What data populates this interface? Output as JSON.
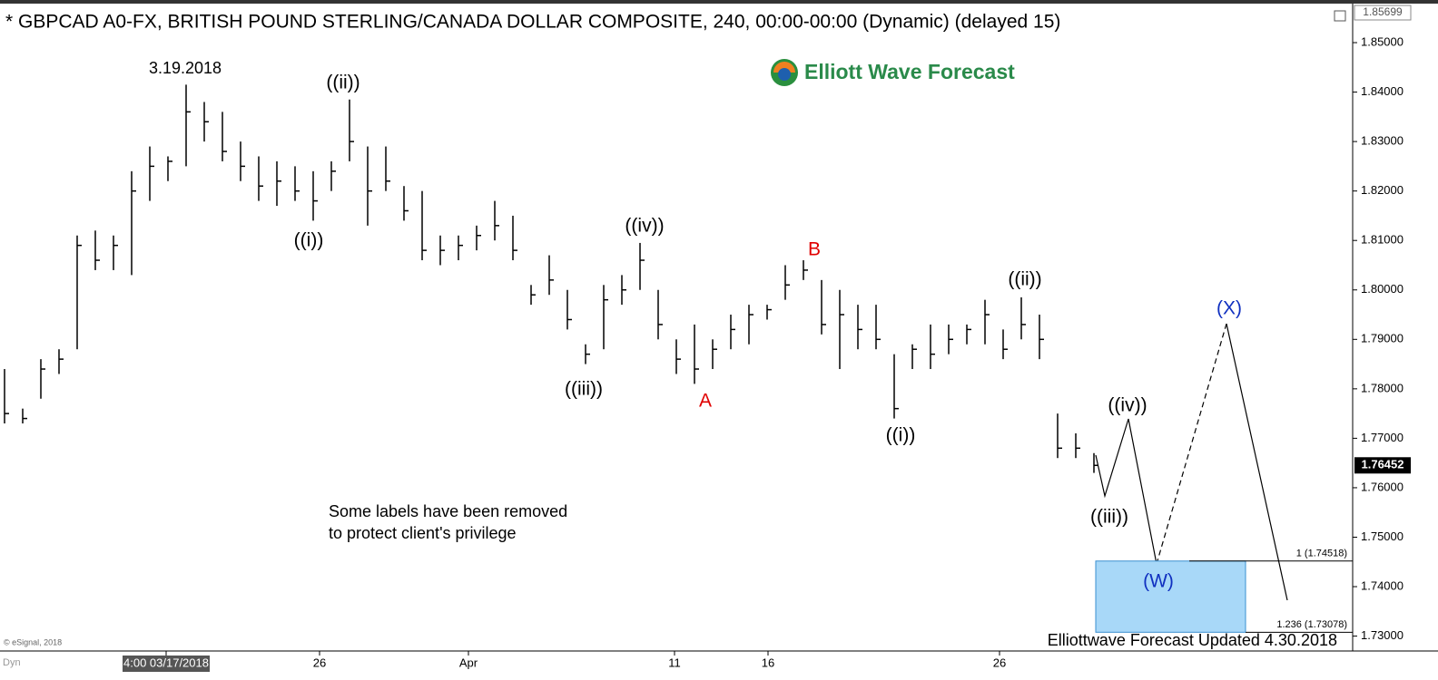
{
  "chart_data": {
    "type": "ohlc",
    "title": "* GBPCAD A0-FX, BRITISH POUND STERLING/CANADA DOLLAR COMPOSITE, 240, 00:00-00:00 (Dynamic) (delayed 15)",
    "logo": "Elliott Wave Forecast",
    "note": [
      "Some labels have been removed",
      "to protect client's privilege"
    ],
    "footer": "Elliottwave Forecast Updated 4.30.2018",
    "copyright": "© eSignal, 2018",
    "mode": "Dyn",
    "color": "#000000",
    "high": [
      1.784,
      1.776,
      1.786,
      1.788,
      1.811,
      1.812,
      1.811,
      1.824,
      1.829,
      1.827,
      1.8415,
      1.838,
      1.836,
      1.83,
      1.827,
      1.826,
      1.825,
      1.824,
      1.826,
      1.8385,
      1.829,
      1.829,
      1.821,
      1.82,
      1.811,
      1.811,
      1.813,
      1.818,
      1.815,
      1.801,
      1.807,
      1.8,
      1.789,
      1.801,
      1.803,
      1.8095,
      1.8,
      1.79,
      1.793,
      1.79,
      1.795,
      1.797,
      1.797,
      1.805,
      1.806,
      1.802,
      1.8,
      1.797,
      1.797,
      1.787,
      1.789,
      1.793,
      1.793,
      1.793,
      1.798,
      1.792,
      1.7985,
      1.795,
      1.775,
      1.771,
      1.767
    ],
    "low": [
      1.773,
      1.773,
      1.778,
      1.783,
      1.788,
      1.804,
      1.804,
      1.803,
      1.818,
      1.822,
      1.825,
      1.83,
      1.826,
      1.822,
      1.818,
      1.817,
      1.818,
      1.814,
      1.82,
      1.826,
      1.813,
      1.82,
      1.814,
      1.806,
      1.805,
      1.806,
      1.808,
      1.81,
      1.806,
      1.797,
      1.799,
      1.792,
      1.785,
      1.788,
      1.797,
      1.8,
      1.79,
      1.783,
      1.781,
      1.784,
      1.788,
      1.789,
      1.794,
      1.798,
      1.802,
      1.791,
      1.784,
      1.788,
      1.788,
      1.774,
      1.784,
      1.784,
      1.787,
      1.789,
      1.789,
      1.786,
      1.79,
      1.786,
      1.766,
      1.766,
      1.763
    ],
    "close": [
      1.775,
      1.774,
      1.784,
      1.786,
      1.809,
      1.806,
      1.809,
      1.82,
      1.825,
      1.826,
      1.836,
      1.834,
      1.828,
      1.825,
      1.821,
      1.822,
      1.82,
      1.818,
      1.824,
      1.83,
      1.82,
      1.822,
      1.816,
      1.808,
      1.808,
      1.809,
      1.811,
      1.813,
      1.808,
      1.799,
      1.802,
      1.794,
      1.787,
      1.798,
      1.8,
      1.806,
      1.793,
      1.786,
      1.784,
      1.788,
      1.792,
      1.795,
      1.796,
      1.801,
      1.804,
      1.793,
      1.795,
      1.792,
      1.79,
      1.776,
      1.788,
      1.787,
      1.79,
      1.792,
      1.795,
      1.788,
      1.793,
      1.79,
      1.768,
      1.768,
      1.76452
    ],
    "xlim": [
      -0.25,
      74.25
    ],
    "xticks": [
      {
        "value": 8.9,
        "label": "4:00 03/17/2018"
      },
      {
        "value": 17.35,
        "label": "26"
      },
      {
        "value": 25.55,
        "label": "Apr"
      },
      {
        "value": 36.9,
        "label": "11"
      },
      {
        "value": 42.05,
        "label": "16"
      },
      {
        "value": 54.8,
        "label": "26"
      }
    ],
    "ylim": [
      1.72699,
      1.85862
    ],
    "yticks": [
      {
        "value": 1.73,
        "label": "1.73000"
      },
      {
        "value": 1.74,
        "label": "1.74000"
      },
      {
        "value": 1.75,
        "label": "1.75000"
      },
      {
        "value": 1.76,
        "label": "1.76000"
      },
      {
        "value": 1.77,
        "label": "1.77000"
      },
      {
        "value": 1.78,
        "label": "1.78000"
      },
      {
        "value": 1.79,
        "label": "1.79000"
      },
      {
        "value": 1.8,
        "label": "1.80000"
      },
      {
        "value": 1.81,
        "label": "1.81000"
      },
      {
        "value": 1.82,
        "label": "1.82000"
      },
      {
        "value": 1.83,
        "label": "1.83000"
      },
      {
        "value": 1.84,
        "label": "1.84000"
      },
      {
        "value": 1.85,
        "label": "1.85000"
      }
    ],
    "last_price": 1.76452,
    "axis_top_price": 1.85699,
    "fib_levels": [
      {
        "value": 1.74518,
        "label": "1 (1.74518)"
      },
      {
        "value": 1.73078,
        "label": "1.236 (1.73078)"
      }
    ],
    "annotations": [
      {
        "text": "3.19.2018",
        "color": "#000000"
      },
      {
        "text": "((ii))",
        "color": "#000000"
      },
      {
        "text": "((i))",
        "color": "#000000"
      },
      {
        "text": "((iv))",
        "color": "#000000"
      },
      {
        "text": "((iii))",
        "color": "#000000"
      },
      {
        "text": "A",
        "color": "#e00000"
      },
      {
        "text": "B",
        "color": "#e00000"
      },
      {
        "text": "((i))",
        "color": "#000000"
      },
      {
        "text": "((ii))",
        "color": "#000000"
      },
      {
        "text": "((iv))",
        "color": "#000000"
      },
      {
        "text": "((iii))",
        "color": "#000000"
      },
      {
        "text": "(W)",
        "color": "#1030c0"
      },
      {
        "text": "(X)",
        "color": "#1030c0"
      }
    ]
  }
}
